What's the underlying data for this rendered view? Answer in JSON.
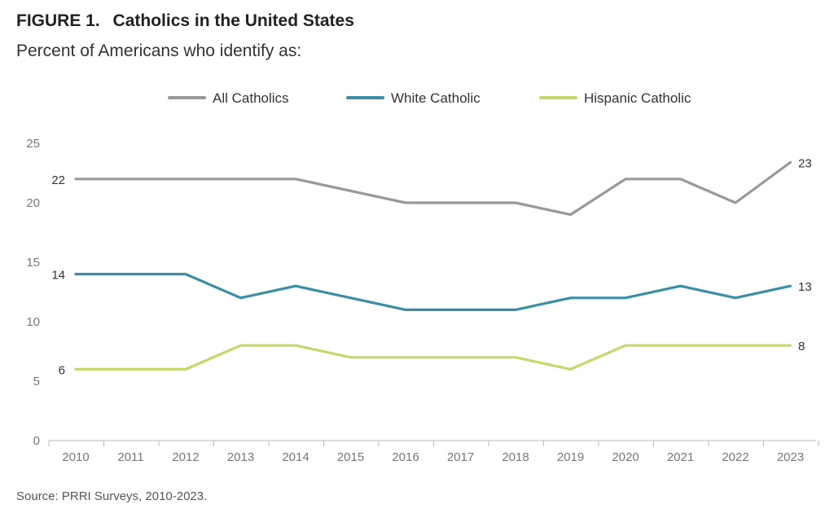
{
  "figure_label": "FIGURE 1.",
  "title": "Catholics in the United States",
  "subtitle": "Percent of Americans who identify as:",
  "source": "Source: PRRI Surveys, 2010-2023.",
  "chart_data": {
    "type": "line",
    "x": [
      "2010",
      "2011",
      "2012",
      "2013",
      "2014",
      "2015",
      "2016",
      "2017",
      "2018",
      "2019",
      "2020",
      "2021",
      "2022",
      "2023"
    ],
    "ylim": [
      0,
      25
    ],
    "yticks": [
      0,
      5,
      10,
      15,
      20,
      25
    ],
    "grid": false,
    "legend_position": "top",
    "series": [
      {
        "name": "All Catholics",
        "color": "#999999",
        "values": [
          22,
          22,
          22,
          22,
          22,
          21,
          20,
          20,
          20,
          19,
          22,
          22,
          20,
          23.4
        ],
        "start_label": "22",
        "end_label": "23"
      },
      {
        "name": "White Catholic",
        "color": "#3a8ea5",
        "values": [
          14,
          14,
          14,
          12,
          13,
          12,
          11,
          11,
          11,
          12,
          12,
          13,
          12,
          13
        ],
        "start_label": "14",
        "end_label": "13"
      },
      {
        "name": "Hispanic Catholic",
        "color": "#c3d96a",
        "values": [
          6,
          6,
          6,
          8,
          8,
          7,
          7,
          7,
          7,
          6,
          8,
          8,
          8,
          8
        ],
        "start_label": "6",
        "end_label": "8"
      }
    ]
  }
}
